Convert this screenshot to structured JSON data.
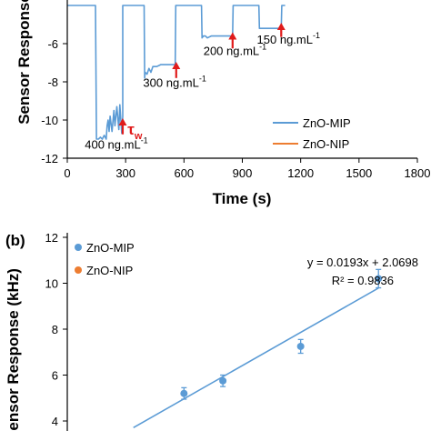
{
  "chart_data": [
    {
      "panel": "",
      "type": "line",
      "xlabel": "Time (s)",
      "ylabel": "Sensor Response",
      "xlim": [
        0,
        1800
      ],
      "ylim": [
        -12,
        -4
      ],
      "xticks": [
        0,
        300,
        600,
        900,
        1200,
        1500,
        1800
      ],
      "yticks": [
        -12,
        -10,
        -8,
        -6
      ],
      "grid": false,
      "legend_position": "bottom-right",
      "series": [
        {
          "name": "ZnO-MIP",
          "color": "#5b9bd5",
          "x": [
            0,
            145,
            150,
            160,
            170,
            180,
            190,
            200,
            205,
            210,
            215,
            220,
            230,
            240,
            245,
            255,
            265,
            270,
            280,
            285,
            285,
            300,
            385,
            395,
            398,
            400,
            410,
            420,
            430,
            440,
            460,
            480,
            500,
            520,
            540,
            555,
            558,
            575,
            580,
            690,
            693,
            700,
            710,
            720,
            740,
            760,
            780,
            800,
            820,
            840,
            850,
            853,
            870,
            875,
            985,
            988,
            1000,
            1020,
            1040,
            1060,
            1080,
            1100,
            1103,
            1120
          ],
          "y": [
            -4,
            -4,
            -11.0,
            -11.0,
            -10.9,
            -11.0,
            -10.8,
            -11.0,
            -10.3,
            -10.0,
            -10.6,
            -9.8,
            -10.6,
            -9.5,
            -10.3,
            -9.3,
            -10.5,
            -9.2,
            -10.7,
            -9.8,
            -4,
            -4,
            -4,
            -4,
            -7.8,
            -7.5,
            -7.6,
            -7.3,
            -7.5,
            -7.2,
            -7.2,
            -7.1,
            -7.1,
            -7.1,
            -7.1,
            -7.1,
            -4,
            -4,
            -4,
            -4,
            -5.7,
            -5.6,
            -5.6,
            -5.7,
            -5.6,
            -5.6,
            -5.6,
            -5.6,
            -5.6,
            -5.6,
            -5.6,
            -4,
            -4,
            -4,
            -4,
            -5.2,
            -5.2,
            -5.2,
            -5.2,
            -5.2,
            -5.2,
            -5.2,
            -4,
            -4
          ]
        },
        {
          "name": "ZnO-NIP",
          "color": "#ed7d31",
          "x": [],
          "y": []
        }
      ],
      "annotations": [
        {
          "text": "400 ng.mL",
          "superscript": "-1",
          "x": 90,
          "y": -11.5
        },
        {
          "text": "300 ng.mL",
          "superscript": "-1",
          "x": 390,
          "y": -8.25
        },
        {
          "text": "200 ng.mL",
          "superscript": "-1",
          "x": 700,
          "y": -6.6
        },
        {
          "text": "150 ng.mL",
          "superscript": "-1",
          "x": 975,
          "y": -6.0
        },
        {
          "text": "τ",
          "subscript": "w",
          "x": 310,
          "y": -10.75
        }
      ],
      "arrows": [
        {
          "x": 285,
          "y_from": -10.75,
          "y_to": -9.95
        },
        {
          "x": 560,
          "y_from": -7.8,
          "y_to": -7.0
        },
        {
          "x": 850,
          "y_from": -6.25,
          "y_to": -5.45
        },
        {
          "x": 1100,
          "y_from": -5.65,
          "y_to": -4.95
        }
      ]
    },
    {
      "panel": "(b)",
      "type": "scatter",
      "xlabel": "",
      "ylabel": "Sensor Response (kHz)",
      "ylim": [
        4,
        12
      ],
      "yticks": [
        4,
        6,
        8,
        10,
        12
      ],
      "xlim": [
        0,
        450
      ],
      "grid": false,
      "legend_position": "top-left",
      "series": [
        {
          "name": "ZnO-MIP",
          "color": "#5b9bd5",
          "x": [
            150,
            200,
            300,
            400
          ],
          "y": [
            5.2,
            5.75,
            7.25,
            10.2
          ],
          "error": [
            0.25,
            0.25,
            0.3,
            0.4
          ]
        },
        {
          "name": "ZnO-NIP",
          "color": "#ed7d31",
          "x": [],
          "y": []
        }
      ],
      "fit": {
        "series": "ZnO-MIP",
        "slope": 0.0193,
        "intercept": 2.0698,
        "x_range": [
          85,
          400
        ],
        "equation": "y = 0.0193x + 2.0698",
        "r2": "R² = 0.9836"
      }
    }
  ]
}
